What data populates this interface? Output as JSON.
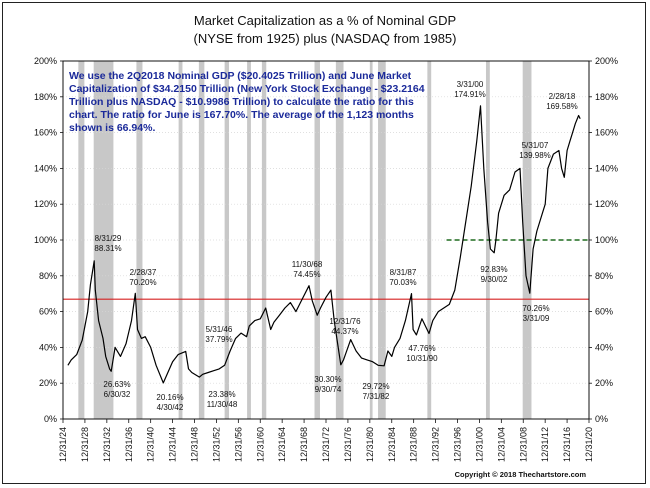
{
  "chart_data": {
    "type": "line",
    "title": "Market Capitalization as a % of Nominal GDP",
    "subtitle": "(NYSE from 1925) plus (NASDAQ from 1985)",
    "ylim": [
      0,
      200
    ],
    "y_ticks": [
      "0%",
      "20%",
      "40%",
      "60%",
      "80%",
      "100%",
      "120%",
      "140%",
      "160%",
      "180%",
      "200%"
    ],
    "xlim": [
      1924,
      2020
    ],
    "x_ticks": [
      "12/31/24",
      "12/31/28",
      "12/31/32",
      "12/31/36",
      "12/31/40",
      "12/31/44",
      "12/31/48",
      "12/31/52",
      "12/31/56",
      "12/31/60",
      "12/31/64",
      "12/31/68",
      "12/31/72",
      "12/31/76",
      "12/31/80",
      "12/31/84",
      "12/31/88",
      "12/31/92",
      "12/31/96",
      "12/31/00",
      "12/31/04",
      "12/31/08",
      "12/31/12",
      "12/31/16",
      "12/31/20"
    ],
    "average_line": {
      "value": 66.94,
      "color": "#d62020"
    },
    "reference_line": {
      "value": 100,
      "color": "#1f6b1f",
      "start_year": 1994
    },
    "recession_bands": [
      [
        1926.8,
        1927.9
      ],
      [
        1929.6,
        1933.2
      ],
      [
        1937.4,
        1938.5
      ],
      [
        1945.1,
        1945.8
      ],
      [
        1948.8,
        1949.8
      ],
      [
        1953.5,
        1954.3
      ],
      [
        1957.6,
        1958.3
      ],
      [
        1960.3,
        1961.1
      ],
      [
        1969.9,
        1970.9
      ],
      [
        1973.8,
        1975.2
      ],
      [
        1980.0,
        1980.5
      ],
      [
        1981.5,
        1982.9
      ],
      [
        1990.5,
        1991.2
      ],
      [
        2001.2,
        2001.9
      ],
      [
        2007.9,
        2009.5
      ]
    ],
    "series": [
      {
        "name": "Market Cap / GDP",
        "color": "#000000",
        "x": [
          1924.9,
          1925.5,
          1926.5,
          1927.5,
          1928.5,
          1929.0,
          1929.7,
          1929.9,
          1930.5,
          1931.3,
          1931.8,
          1932.5,
          1932.8,
          1933.5,
          1934.5,
          1935.5,
          1936.5,
          1937.2,
          1937.6,
          1938.3,
          1939.0,
          1940.0,
          1941.0,
          1942.3,
          1943.0,
          1944.0,
          1945.0,
          1946.4,
          1946.9,
          1947.5,
          1948.9,
          1949.5,
          1950.5,
          1951.5,
          1952.5,
          1953.5,
          1954.5,
          1955.5,
          1956.5,
          1957.5,
          1958.0,
          1959.0,
          1960.0,
          1961.0,
          1961.9,
          1962.5,
          1963.5,
          1964.5,
          1965.5,
          1966.5,
          1967.5,
          1968.9,
          1969.5,
          1970.4,
          1971.0,
          1972.0,
          1972.9,
          1973.5,
          1974.7,
          1975.2,
          1976.0,
          1976.5,
          1977.5,
          1978.5,
          1979.5,
          1980.5,
          1981.5,
          1982.6,
          1983.3,
          1984.0,
          1984.5,
          1985.5,
          1986.5,
          1987.6,
          1987.9,
          1988.5,
          1989.5,
          1990.8,
          1991.5,
          1992.5,
          1993.5,
          1994.5,
          1995.5,
          1996.5,
          1997.5,
          1998.5,
          1999.5,
          2000.2,
          2000.8,
          2001.5,
          2002.0,
          2002.7,
          2003.0,
          2003.5,
          2004.5,
          2005.5,
          2006.5,
          2007.4,
          2007.9,
          2008.5,
          2009.2,
          2009.8,
          2010.5,
          2011.5,
          2012.0,
          2012.5,
          2013.5,
          2014.5,
          2015.0,
          2015.5,
          2016.0,
          2016.5,
          2017.0,
          2017.5,
          2018.1,
          2018.4
        ],
        "values": [
          30,
          33,
          36,
          44,
          60,
          75,
          88.31,
          72,
          55,
          45,
          35,
          28,
          26.63,
          40,
          35,
          42,
          55,
          70.2,
          50,
          45,
          46,
          40,
          30,
          20.16,
          25,
          32,
          36,
          37.79,
          28,
          26,
          23.38,
          25,
          26,
          27,
          28,
          30,
          38,
          45,
          48,
          46,
          52,
          55,
          56,
          62,
          50,
          54,
          58,
          62,
          65,
          60,
          66,
          74.45,
          66,
          58,
          62,
          68,
          72,
          55,
          30.3,
          33,
          40,
          44.37,
          38,
          34,
          33,
          32,
          30,
          29.72,
          38,
          35,
          40,
          45,
          55,
          70.03,
          50,
          47,
          56,
          47.76,
          55,
          60,
          62,
          64,
          72,
          90,
          110,
          130,
          155,
          174.91,
          140,
          110,
          95,
          92.83,
          100,
          115,
          125,
          128,
          138,
          139.98,
          110,
          80,
          70.26,
          95,
          105,
          115,
          120,
          140,
          148,
          150,
          140,
          135,
          150,
          155,
          160,
          165,
          169.58,
          167.7
        ]
      }
    ],
    "callouts": [
      {
        "date": "8/31/29",
        "value": "88.31%"
      },
      {
        "date": "6/30/32",
        "value": "26.63%"
      },
      {
        "date": "2/28/37",
        "value": "70.20%"
      },
      {
        "date": "4/30/42",
        "value": "20.16%"
      },
      {
        "date": "5/31/46",
        "value": "37.79%"
      },
      {
        "date": "11/30/48",
        "value": "23.38%"
      },
      {
        "date": "11/30/68",
        "value": "74.45%"
      },
      {
        "date": "9/30/74",
        "value": "30.30%"
      },
      {
        "date": "12/31/76",
        "value": "44.37%"
      },
      {
        "date": "7/31/82",
        "value": "29.72%"
      },
      {
        "date": "8/31/87",
        "value": "70.03%"
      },
      {
        "date": "10/31/90",
        "value": "47.76%"
      },
      {
        "date": "3/31/00",
        "value": "174.91%"
      },
      {
        "date": "9/30/02",
        "value": "92.83%"
      },
      {
        "date": "5/31/07",
        "value": "139.98%"
      },
      {
        "date": "3/31/09",
        "value": "70.26%"
      },
      {
        "date": "2/28/18",
        "value": "169.58%"
      }
    ],
    "note_lines": [
      "We use the 2Q2018 Nominal GDP ($20.4025 Trillion) and June Market",
      "Capitalization of $34.2150 Trillion (New York Stock Exchange - $23.2164",
      "Trillion plus NASDAQ - $10.9986 Trillion) to calculate the ratio for this",
      "chart.  The ratio for June is 167.70%.  The average of the 1,123 months",
      "shown is 66.94%."
    ],
    "copyright": "Copyright © 2018 Thechartstore.com"
  }
}
